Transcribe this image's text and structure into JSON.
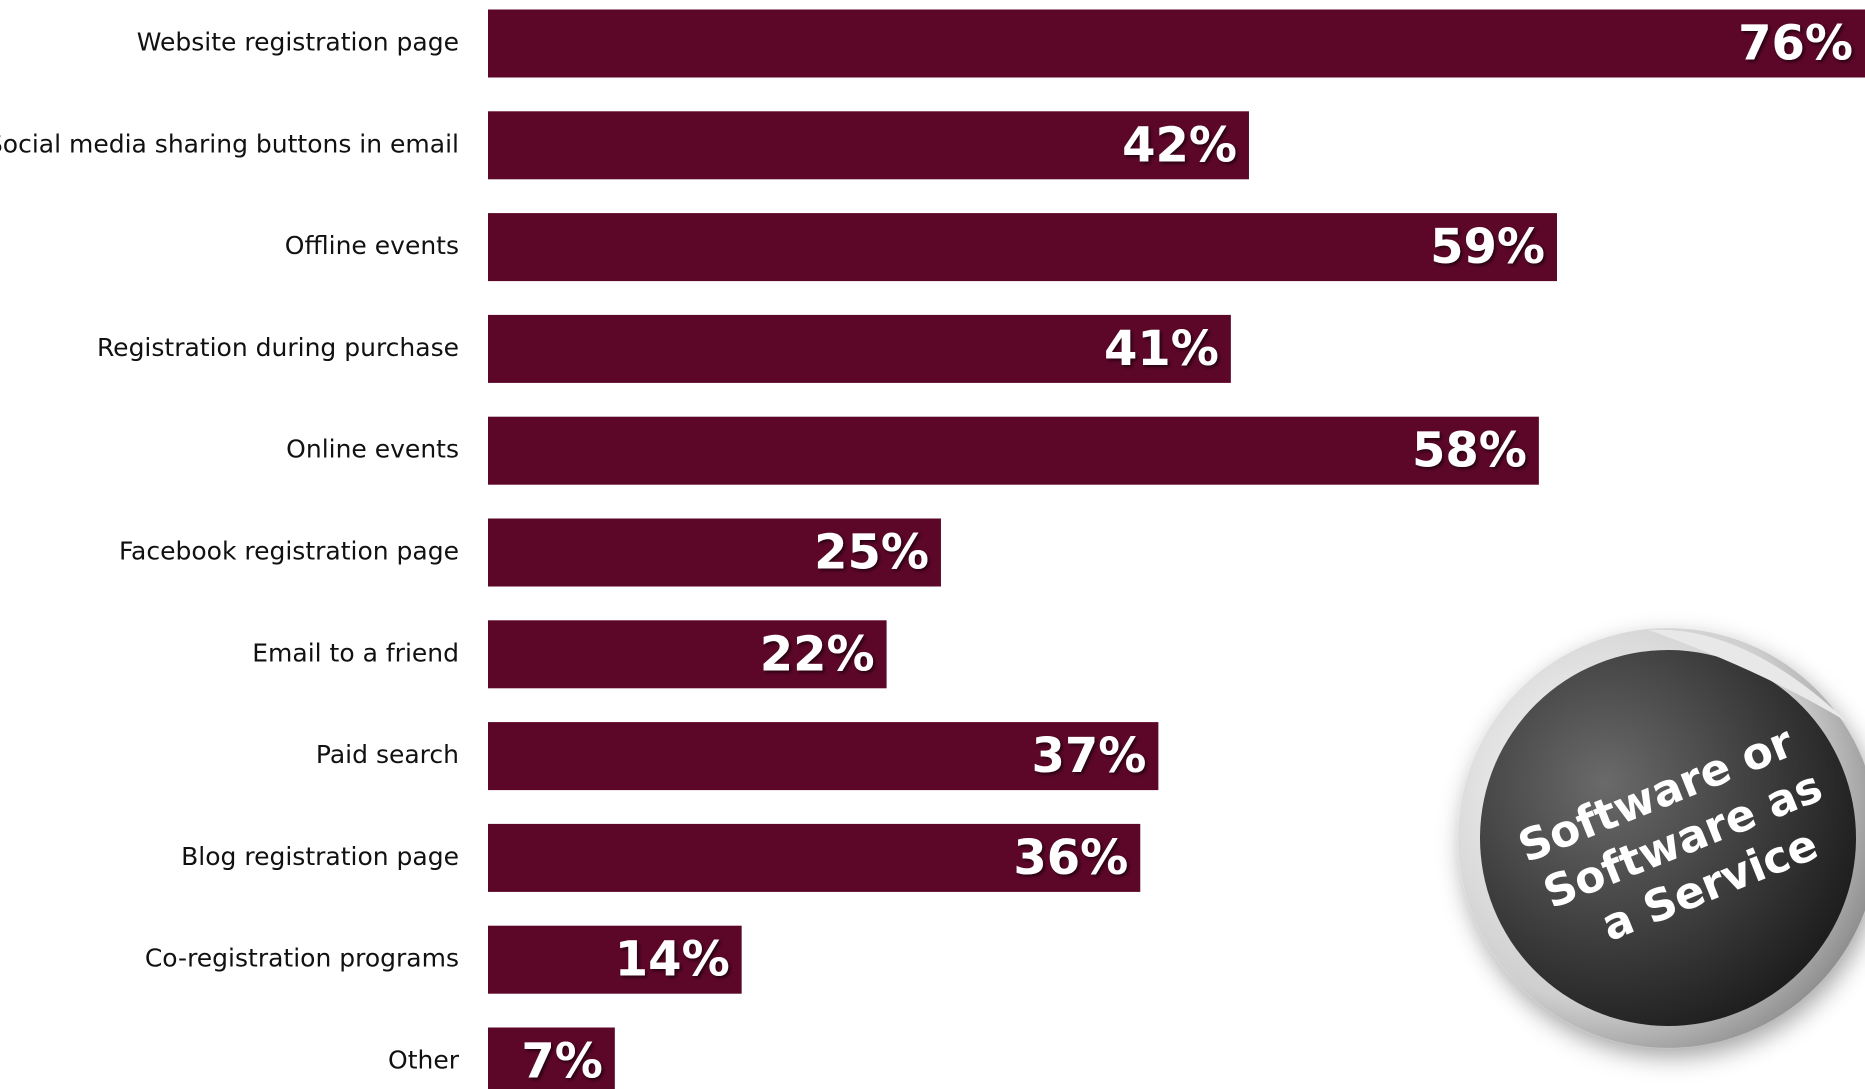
{
  "chart_data": {
    "type": "bar",
    "orientation": "horizontal",
    "categories": [
      "Website registration page",
      "Social media sharing buttons in email",
      "Offline events",
      "Registration during purchase",
      "Online events",
      "Facebook registration page",
      "Email to a friend",
      "Paid search",
      "Blog registration page",
      "Co-registration programs",
      "Other"
    ],
    "values": [
      76,
      42,
      59,
      41,
      58,
      25,
      22,
      37,
      36,
      14,
      7
    ],
    "value_labels": [
      "76%",
      "42%",
      "59%",
      "41%",
      "58%",
      "25%",
      "22%",
      "37%",
      "36%",
      "14%",
      "7%"
    ],
    "color": "#5c0628",
    "badge": [
      "Software or",
      "Software as",
      "a Service"
    ]
  }
}
